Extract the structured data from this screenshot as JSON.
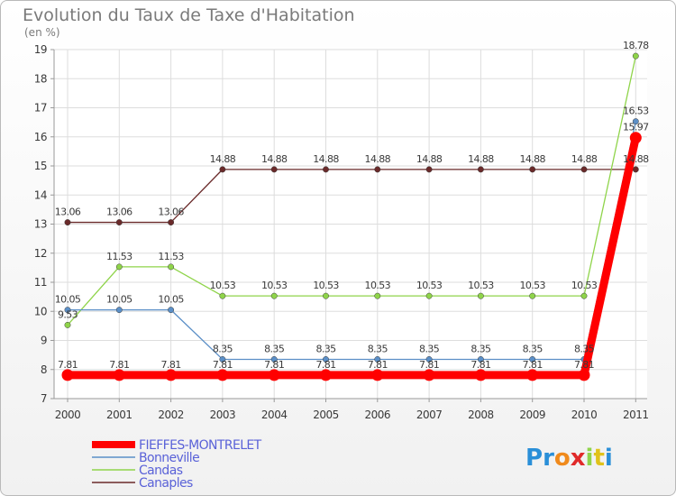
{
  "chart_data": {
    "type": "line",
    "title": "Evolution du Taux de Taxe d'Habitation",
    "ylabel": "(en %)",
    "xlabel": "",
    "x": [
      "2000",
      "2001",
      "2002",
      "2003",
      "2004",
      "2005",
      "2006",
      "2007",
      "2008",
      "2009",
      "2010",
      "2011"
    ],
    "yticks": [
      7,
      8,
      9,
      10,
      11,
      12,
      13,
      14,
      15,
      16,
      17,
      18,
      19
    ],
    "ylim": [
      7,
      19
    ],
    "grid": true,
    "series": [
      {
        "name": "FIEFFES-MONTRELET",
        "color": "#ff0000",
        "values": [
          7.81,
          7.81,
          7.81,
          7.81,
          7.81,
          7.81,
          7.81,
          7.81,
          7.81,
          7.81,
          7.81,
          15.97
        ],
        "labels": [
          "7.81",
          "7.81",
          "7.81",
          "7.81",
          "7.81",
          "7.81",
          "7.81",
          "7.81",
          "7.81",
          "7.81",
          "7.81",
          "15.97"
        ]
      },
      {
        "name": "Bonneville",
        "color": "#5b8fc7",
        "values": [
          10.05,
          10.05,
          10.05,
          8.35,
          8.35,
          8.35,
          8.35,
          8.35,
          8.35,
          8.35,
          8.35,
          16.53
        ],
        "labels": [
          "10.05",
          "10.05",
          "10.05",
          "8.35",
          "8.35",
          "8.35",
          "8.35",
          "8.35",
          "8.35",
          "8.35",
          "8.35",
          "16.53"
        ]
      },
      {
        "name": "Candas",
        "color": "#8fd44a",
        "values": [
          9.53,
          11.53,
          11.53,
          10.53,
          10.53,
          10.53,
          10.53,
          10.53,
          10.53,
          10.53,
          10.53,
          18.78
        ],
        "labels": [
          "9.53",
          "11.53",
          "11.53",
          "10.53",
          "10.53",
          "10.53",
          "10.53",
          "10.53",
          "10.53",
          "10.53",
          "10.53",
          "18.78"
        ]
      },
      {
        "name": "Canaples",
        "color": "#6a2a2a",
        "values": [
          13.06,
          13.06,
          13.06,
          14.88,
          14.88,
          14.88,
          14.88,
          14.88,
          14.88,
          14.88,
          14.88,
          14.88
        ],
        "labels": [
          "13.06",
          "13.06",
          "13.06",
          "14.88",
          "14.88",
          "14.88",
          "14.88",
          "14.88",
          "14.88",
          "14.88",
          "14.88",
          "14.88"
        ]
      }
    ]
  },
  "logo": {
    "text": "Proxiti"
  }
}
